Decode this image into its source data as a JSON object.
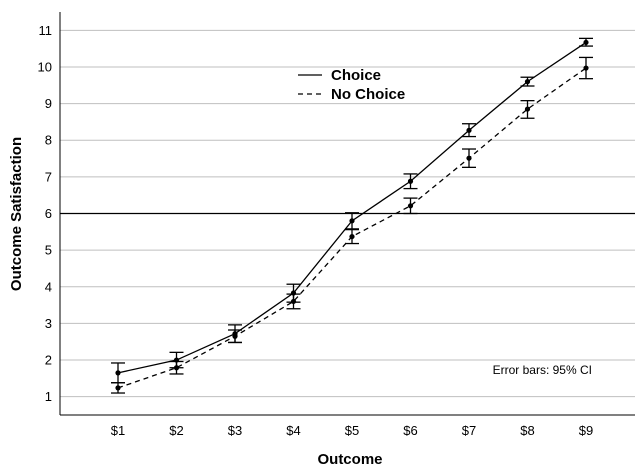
{
  "chart_data": {
    "type": "line",
    "xlabel": "Outcome",
    "ylabel": "Outcome Satisfaction",
    "categories": [
      "$1",
      "$2",
      "$3",
      "$4",
      "$5",
      "$6",
      "$7",
      "$8",
      "$9"
    ],
    "ylim": [
      0.5,
      11.5
    ],
    "yticks": [
      1,
      2,
      3,
      4,
      5,
      6,
      7,
      8,
      9,
      10,
      11
    ],
    "grid": true,
    "legend": "top-center",
    "reference_line": 6,
    "note": "Error bars: 95% CI",
    "series": [
      {
        "name": "Choice",
        "style": "solid",
        "color": "#000000",
        "values": [
          1.65,
          2.0,
          2.72,
          3.83,
          5.8,
          6.88,
          8.27,
          9.6,
          10.67
        ],
        "ci_low": [
          1.38,
          1.79,
          2.48,
          3.58,
          5.58,
          6.68,
          8.1,
          9.48,
          10.57
        ],
        "ci_high": [
          1.92,
          2.21,
          2.96,
          4.07,
          6.02,
          7.08,
          8.45,
          9.72,
          10.78
        ]
      },
      {
        "name": "No Choice",
        "style": "dashed",
        "color": "#000000",
        "values": [
          1.24,
          1.79,
          2.65,
          3.6,
          5.37,
          6.21,
          7.51,
          8.85,
          9.97
        ],
        "ci_low": [
          1.1,
          1.62,
          2.48,
          3.4,
          5.18,
          6.0,
          7.26,
          8.6,
          9.68
        ],
        "ci_high": [
          1.38,
          1.96,
          2.82,
          3.8,
          5.56,
          6.42,
          7.76,
          9.08,
          10.26
        ]
      }
    ]
  }
}
